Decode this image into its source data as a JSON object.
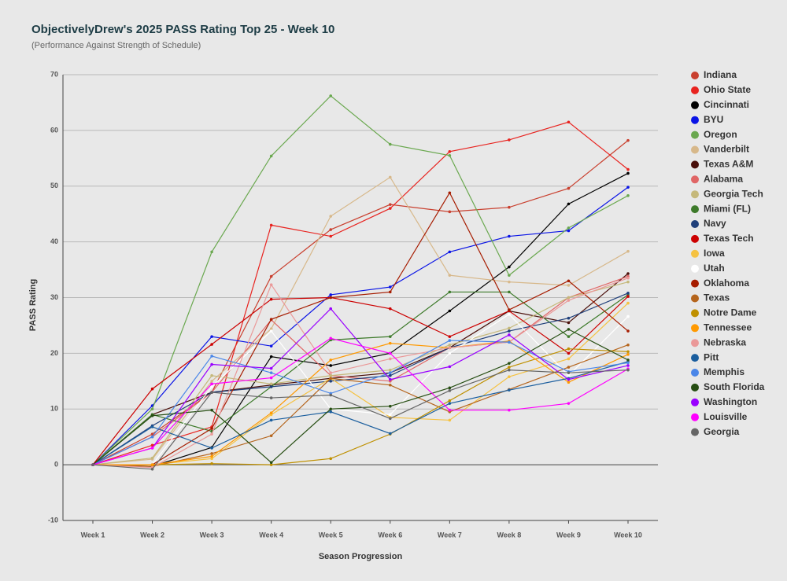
{
  "chart_data": {
    "type": "line",
    "title": "ObjectivelyDrew's 2025 PASS Rating Top 25 - Week 10",
    "subtitle": "(Performance Against Strength of Schedule)",
    "x_label": "Season Progression",
    "y_label": "PASS Rating",
    "categories": [
      "Week 1",
      "Week 2",
      "Week 3",
      "Week 4",
      "Week 5",
      "Week 6",
      "Week 7",
      "Week 8",
      "Week 9",
      "Week 10"
    ],
    "ylim": [
      -10,
      70
    ],
    "yticks": [
      -10,
      0,
      10,
      20,
      30,
      40,
      50,
      60,
      70
    ],
    "grid": true,
    "legend": "right",
    "series": [
      {
        "name": "Indiana",
        "color": "#c9402f",
        "values": [
          0,
          5.5,
          13,
          33.8,
          42.2,
          46.7,
          45.4,
          46.2,
          49.6,
          58.2
        ]
      },
      {
        "name": "Ohio State",
        "color": "#e8231f",
        "values": [
          0,
          3.5,
          6.8,
          43,
          41,
          46,
          56.2,
          58.3,
          61.5,
          53
        ]
      },
      {
        "name": "Cincinnati",
        "color": "#000000",
        "values": [
          0,
          -0.3,
          3.1,
          19.4,
          17.8,
          20,
          27.6,
          35.5,
          46.8,
          52.3
        ]
      },
      {
        "name": "BYU",
        "color": "#0a14e6",
        "values": [
          0,
          10.6,
          23,
          21.3,
          30.5,
          31.9,
          38.2,
          41,
          42,
          49.8
        ]
      },
      {
        "name": "Oregon",
        "color": "#6aa84f",
        "values": [
          0,
          10,
          38.2,
          55.4,
          66.2,
          57.5,
          55.5,
          34,
          42.5,
          48.3
        ]
      },
      {
        "name": "Vanderbilt",
        "color": "#d7b88a",
        "values": [
          0,
          1,
          15,
          24.4,
          44.6,
          51.6,
          34,
          32.8,
          32.2,
          38.3
        ]
      },
      {
        "name": "Texas A&M",
        "color": "#4a0f0a",
        "values": [
          0,
          9,
          13,
          14.3,
          15.5,
          16.5,
          21,
          27.6,
          25.5,
          34.3
        ]
      },
      {
        "name": "Alabama",
        "color": "#e06666",
        "values": [
          0,
          5,
          13,
          26,
          16,
          15,
          21,
          22,
          30,
          33.8
        ]
      },
      {
        "name": "Georgia Tech",
        "color": "#c5b87a",
        "values": [
          0,
          1.2,
          16,
          14.5,
          16,
          17,
          21.5,
          24.5,
          30,
          32.8
        ]
      },
      {
        "name": "Miami (FL)",
        "color": "#3d7a2a",
        "values": [
          0,
          9,
          6,
          14,
          22.4,
          23,
          31,
          31,
          23,
          30.5
        ]
      },
      {
        "name": "Navy",
        "color": "#1f3f7a",
        "values": [
          0,
          7,
          13,
          14,
          15,
          16,
          21,
          24,
          26.3,
          30.8
        ]
      },
      {
        "name": "Texas Tech",
        "color": "#cc0000",
        "values": [
          0,
          13.6,
          21.6,
          29.7,
          30,
          28,
          23,
          27.6,
          20,
          30.2
        ]
      },
      {
        "name": "Iowa",
        "color": "#f5c242",
        "values": [
          0,
          0,
          1.1,
          9,
          15.5,
          8.5,
          8,
          15.8,
          19,
          29
        ]
      },
      {
        "name": "Utah",
        "color": "#ffffff",
        "values": [
          0,
          0,
          14,
          24,
          10,
          9,
          20,
          27,
          16,
          26.6
        ]
      },
      {
        "name": "Oklahoma",
        "color": "#a61c00",
        "values": [
          0,
          0,
          6.5,
          26.1,
          30,
          31,
          48.8,
          27.8,
          33,
          24
        ]
      },
      {
        "name": "Texas",
        "color": "#b5651d",
        "values": [
          0,
          -0.3,
          2,
          5.2,
          15.5,
          14.3,
          9.5,
          13.5,
          17.5,
          21.5
        ]
      },
      {
        "name": "Notre Dame",
        "color": "#bf9000",
        "values": [
          0,
          0,
          0.2,
          0,
          1.1,
          5.5,
          11.5,
          17.5,
          20.8,
          20.3
        ]
      },
      {
        "name": "Tennessee",
        "color": "#ff9900",
        "values": [
          0,
          0,
          1.5,
          9.3,
          18.8,
          21.8,
          21,
          22.2,
          14.8,
          19.8
        ]
      },
      {
        "name": "Nebraska",
        "color": "#ea9999",
        "values": [
          0,
          -0.5,
          5.5,
          32.3,
          16.5,
          19,
          21,
          22,
          29.5,
          33.5
        ]
      },
      {
        "name": "Pitt",
        "color": "#1b5e9e",
        "values": [
          0,
          6.8,
          3,
          8,
          9.5,
          5.6,
          11,
          13.4,
          15.5,
          18.5
        ]
      },
      {
        "name": "Memphis",
        "color": "#4a86e8",
        "values": [
          0,
          5,
          19.5,
          16.5,
          12.8,
          16.5,
          22.3,
          22,
          16.7,
          18.3
        ]
      },
      {
        "name": "South Florida",
        "color": "#274e13",
        "values": [
          0,
          8.8,
          9.8,
          0.4,
          10,
          10.5,
          13.8,
          18.2,
          24.3,
          18.8
        ]
      },
      {
        "name": "Washington",
        "color": "#9900ff",
        "values": [
          0,
          3,
          18,
          17.3,
          28,
          15.3,
          17.6,
          23.3,
          15.3,
          17.8
        ]
      },
      {
        "name": "Louisville",
        "color": "#ff00ff",
        "values": [
          0,
          3,
          14.5,
          15.6,
          22.7,
          20,
          9.8,
          9.8,
          11,
          17.2
        ]
      },
      {
        "name": "Georgia",
        "color": "#666666",
        "values": [
          0,
          -0.8,
          13,
          12,
          12.5,
          8.3,
          13.3,
          17,
          16.5,
          17
        ]
      }
    ]
  }
}
